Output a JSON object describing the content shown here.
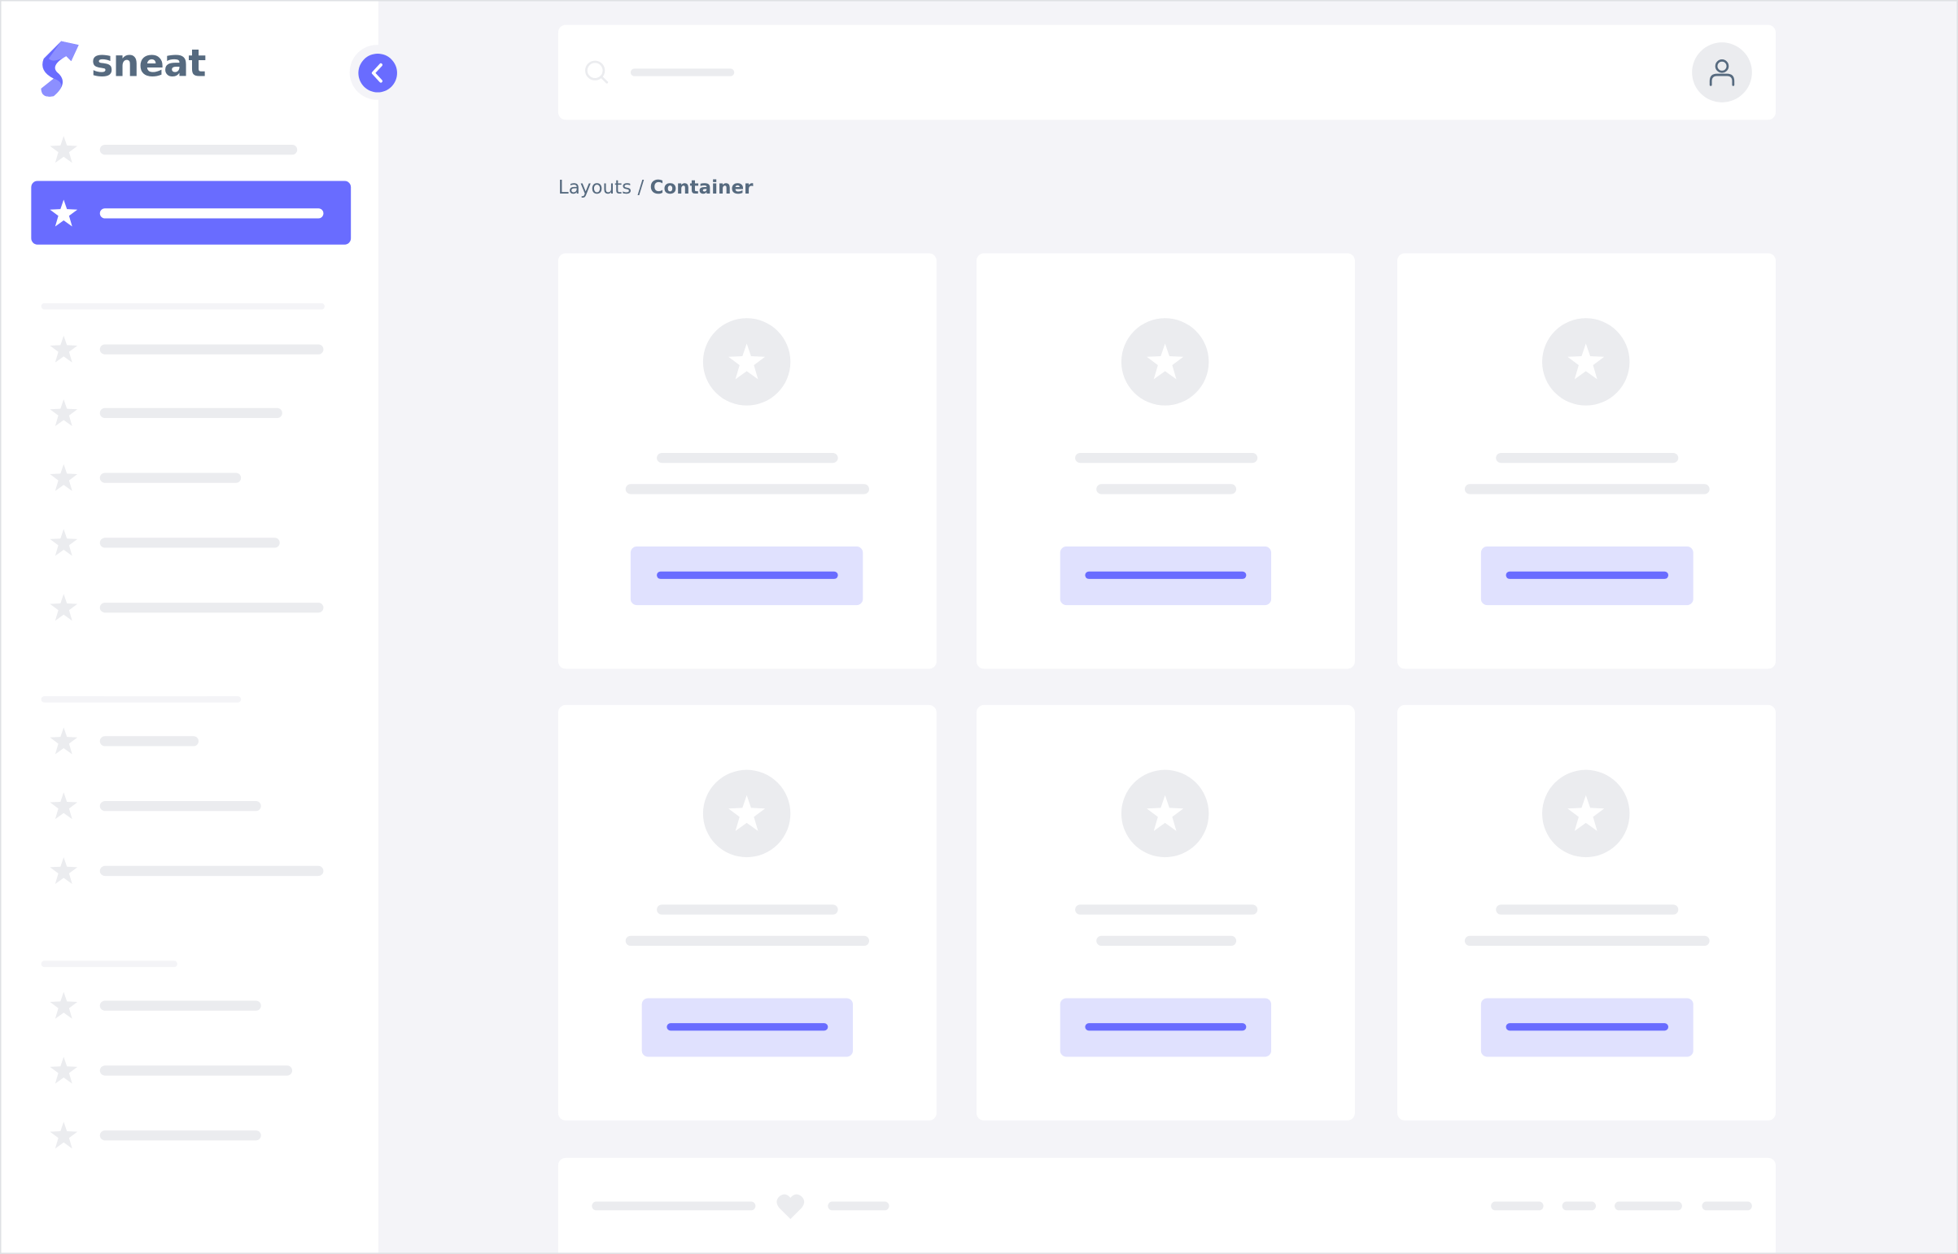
{
  "brand": {
    "name": "sneat",
    "logo_icon": "sneat-s-logo",
    "accent_color": "#696cff",
    "text_color": "#566a7f"
  },
  "sidebar": {
    "collapse_icon": "chevron-left-icon",
    "item_icon": "star-icon"
  },
  "navbar": {
    "search_icon": "search-icon",
    "avatar_icon": "user-icon"
  },
  "breadcrumb": {
    "parent": "Layouts",
    "separator": "/",
    "current": "Container"
  },
  "footer": {
    "icon": "heart-icon"
  },
  "colors": {
    "background": "#f4f4f8",
    "skeleton": "#ebecef",
    "button_tint": "#e0e1fe"
  }
}
